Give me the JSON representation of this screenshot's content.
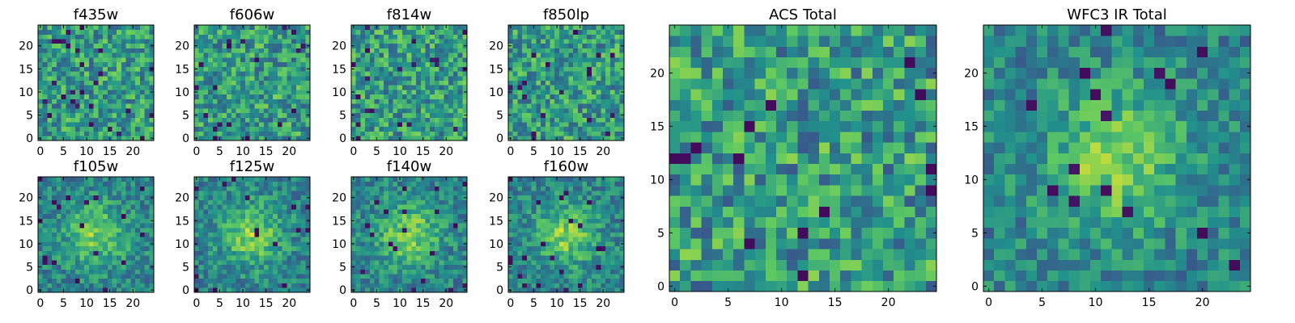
{
  "figure": {
    "description": "Grid of pixel cutout images in HST filters"
  },
  "chart_data": [
    {
      "type": "heatmap",
      "title": "f435w",
      "size": 25,
      "xticks": [
        0,
        5,
        10,
        15,
        20
      ],
      "yticks": [
        0,
        5,
        10,
        15,
        20
      ],
      "colormap": "viridis",
      "vmin": 0,
      "vmax": 1,
      "seed": 11,
      "pattern": "noise"
    },
    {
      "type": "heatmap",
      "title": "f606w",
      "size": 25,
      "xticks": [
        0,
        5,
        10,
        15,
        20
      ],
      "yticks": [
        0,
        5,
        10,
        15,
        20
      ],
      "colormap": "viridis",
      "vmin": 0,
      "vmax": 1,
      "seed": 22,
      "pattern": "noise"
    },
    {
      "type": "heatmap",
      "title": "f814w",
      "size": 25,
      "xticks": [
        0,
        5,
        10,
        15,
        20
      ],
      "yticks": [
        0,
        5,
        10,
        15,
        20
      ],
      "colormap": "viridis",
      "vmin": 0,
      "vmax": 1,
      "seed": 33,
      "pattern": "noise"
    },
    {
      "type": "heatmap",
      "title": "f850lp",
      "size": 25,
      "xticks": [
        0,
        5,
        10,
        15,
        20
      ],
      "yticks": [
        0,
        5,
        10,
        15,
        20
      ],
      "colormap": "viridis",
      "vmin": 0,
      "vmax": 1,
      "seed": 44,
      "pattern": "noise"
    },
    {
      "type": "heatmap",
      "title": "f105w",
      "size": 25,
      "xticks": [
        0,
        5,
        10,
        15,
        20
      ],
      "yticks": [
        0,
        5,
        10,
        15,
        20
      ],
      "colormap": "viridis",
      "vmin": 0,
      "vmax": 1,
      "seed": 55,
      "pattern": "blob"
    },
    {
      "type": "heatmap",
      "title": "f125w",
      "size": 25,
      "xticks": [
        0,
        5,
        10,
        15,
        20
      ],
      "yticks": [
        0,
        5,
        10,
        15,
        20
      ],
      "colormap": "viridis",
      "vmin": 0,
      "vmax": 1,
      "seed": 66,
      "pattern": "blob"
    },
    {
      "type": "heatmap",
      "title": "f140w",
      "size": 25,
      "xticks": [
        0,
        5,
        10,
        15,
        20
      ],
      "yticks": [
        0,
        5,
        10,
        15,
        20
      ],
      "colormap": "viridis",
      "vmin": 0,
      "vmax": 1,
      "seed": 77,
      "pattern": "blob"
    },
    {
      "type": "heatmap",
      "title": "f160w",
      "size": 25,
      "xticks": [
        0,
        5,
        10,
        15,
        20
      ],
      "yticks": [
        0,
        5,
        10,
        15,
        20
      ],
      "colormap": "viridis",
      "vmin": 0,
      "vmax": 1,
      "seed": 88,
      "pattern": "blob"
    },
    {
      "type": "heatmap",
      "title": "ACS Total",
      "size": 25,
      "xticks": [
        0,
        5,
        10,
        15,
        20
      ],
      "yticks": [
        0,
        5,
        10,
        15,
        20
      ],
      "colormap": "viridis",
      "vmin": 0,
      "vmax": 1,
      "seed": 99,
      "pattern": "smooth"
    },
    {
      "type": "heatmap",
      "title": "WFC3 IR Total",
      "size": 25,
      "xticks": [
        0,
        5,
        10,
        15,
        20
      ],
      "yticks": [
        0,
        5,
        10,
        15,
        20
      ],
      "colormap": "viridis",
      "vmin": 0,
      "vmax": 1,
      "seed": 111,
      "pattern": "blob"
    }
  ]
}
